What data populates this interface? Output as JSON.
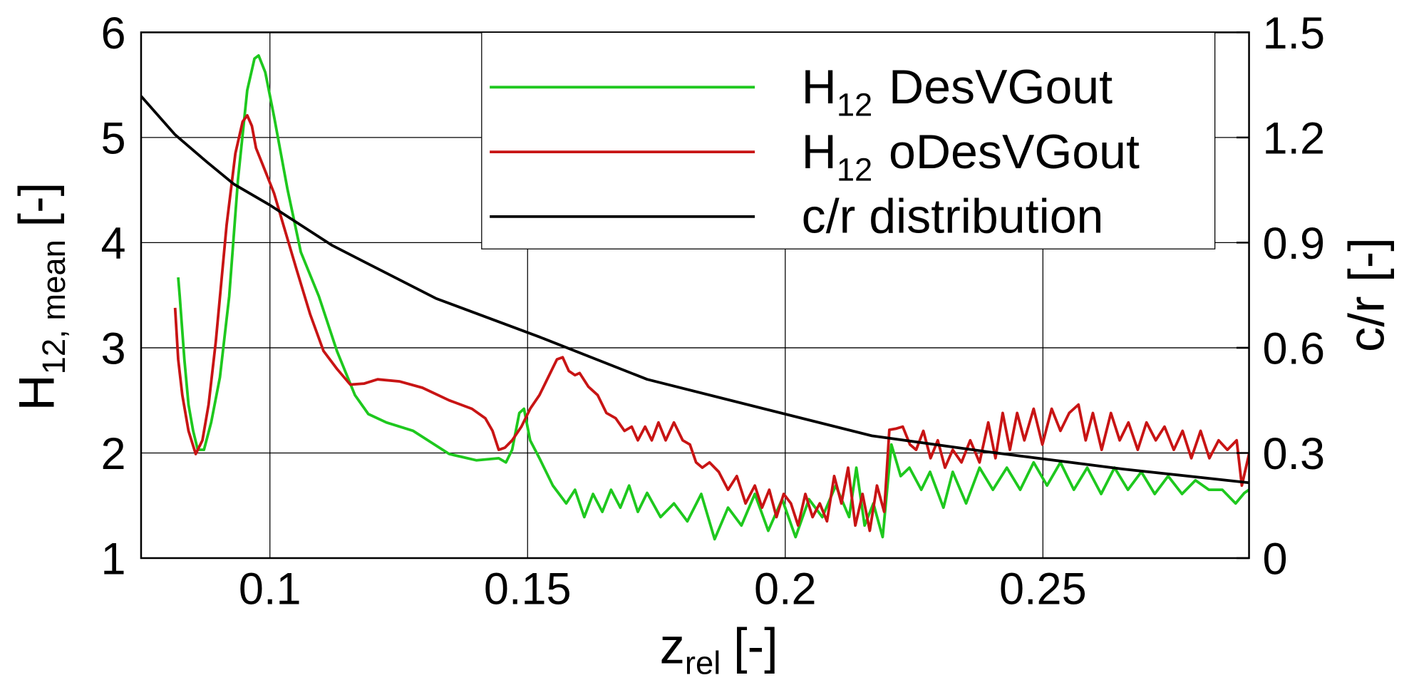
{
  "chart_data": {
    "type": "line",
    "xlabel": {
      "base": "z",
      "sub": "rel",
      "unit": "[-]"
    },
    "ylabel": {
      "base": "H",
      "sub": "12, mean",
      "unit": "[-]"
    },
    "y2label": "c/r [-]",
    "xlim": [
      0.075,
      0.29
    ],
    "xticks": [
      0.1,
      0.15,
      0.2,
      0.25
    ],
    "ylim": [
      1,
      6
    ],
    "yticks": [
      1,
      2,
      3,
      4,
      5,
      6
    ],
    "y2lim": [
      0,
      1.5
    ],
    "y2ticks": [
      0,
      0.3,
      0.6,
      0.9,
      1.2,
      1.5
    ],
    "grid": true,
    "legend": "upper right",
    "series": [
      {
        "name": {
          "base": "H",
          "sub": "12",
          "rest": "DesVGout"
        },
        "color": "#1ec81e",
        "x": [
          0.0822,
          0.0825,
          0.0834,
          0.0842,
          0.0851,
          0.086,
          0.0872,
          0.0886,
          0.0903,
          0.0921,
          0.0938,
          0.0956,
          0.097,
          0.0978,
          0.0991,
          0.1008,
          0.1034,
          0.106,
          0.1095,
          0.113,
          0.1165,
          0.1191,
          0.1226,
          0.1278,
          0.1348,
          0.1401,
          0.1444,
          0.1458,
          0.147,
          0.1484,
          0.1493,
          0.1505,
          0.1523,
          0.1549,
          0.1575,
          0.1592,
          0.161,
          0.1627,
          0.1645,
          0.1662,
          0.168,
          0.1697,
          0.1714,
          0.1732,
          0.1758,
          0.1784,
          0.181,
          0.1837,
          0.1863,
          0.1889,
          0.1915,
          0.1941,
          0.1967,
          0.1994,
          0.202,
          0.2046,
          0.2072,
          0.2098,
          0.2124,
          0.2138,
          0.2154,
          0.2171,
          0.2189,
          0.2206,
          0.2224,
          0.2241,
          0.2264,
          0.2281,
          0.2307,
          0.2325,
          0.2351,
          0.2377,
          0.2403,
          0.243,
          0.2456,
          0.2482,
          0.2508,
          0.2534,
          0.256,
          0.2586,
          0.2613,
          0.2639,
          0.2665,
          0.2691,
          0.2717,
          0.2743,
          0.277,
          0.2796,
          0.2822,
          0.2848,
          0.2874,
          0.2891,
          0.29
        ],
        "values": [
          3.67,
          3.49,
          2.89,
          2.46,
          2.21,
          2.03,
          2.03,
          2.29,
          2.72,
          3.49,
          4.6,
          5.45,
          5.75,
          5.78,
          5.62,
          5.2,
          4.51,
          3.91,
          3.49,
          2.97,
          2.55,
          2.37,
          2.29,
          2.21,
          1.99,
          1.93,
          1.95,
          1.91,
          2.03,
          2.38,
          2.42,
          2.12,
          1.95,
          1.69,
          1.52,
          1.65,
          1.39,
          1.61,
          1.44,
          1.65,
          1.48,
          1.69,
          1.44,
          1.62,
          1.39,
          1.52,
          1.35,
          1.61,
          1.18,
          1.48,
          1.31,
          1.61,
          1.26,
          1.56,
          1.2,
          1.56,
          1.39,
          1.69,
          1.39,
          1.86,
          1.31,
          1.52,
          1.2,
          2.08,
          1.78,
          1.86,
          1.65,
          1.82,
          1.48,
          1.82,
          1.52,
          1.86,
          1.65,
          1.86,
          1.65,
          1.91,
          1.69,
          1.91,
          1.65,
          1.86,
          1.61,
          1.86,
          1.65,
          1.82,
          1.61,
          1.78,
          1.61,
          1.74,
          1.65,
          1.65,
          1.52,
          1.62,
          1.65
        ]
      },
      {
        "name": {
          "base": "H",
          "sub": "12",
          "rest": "oDesVGout"
        },
        "color": "#c81414",
        "x": [
          0.0816,
          0.0822,
          0.083,
          0.0842,
          0.0856,
          0.0869,
          0.0881,
          0.0895,
          0.0916,
          0.0933,
          0.0947,
          0.0956,
          0.0965,
          0.0973,
          0.0991,
          0.1008,
          0.1026,
          0.1052,
          0.1078,
          0.1104,
          0.113,
          0.1156,
          0.1183,
          0.1209,
          0.1252,
          0.1296,
          0.1348,
          0.1392,
          0.1418,
          0.1432,
          0.1444,
          0.1456,
          0.147,
          0.1488,
          0.1505,
          0.1523,
          0.154,
          0.1557,
          0.1568,
          0.158,
          0.1592,
          0.1601,
          0.1618,
          0.1636,
          0.1653,
          0.1671,
          0.1688,
          0.1702,
          0.1714,
          0.1728,
          0.1741,
          0.1754,
          0.1768,
          0.1784,
          0.1801,
          0.1815,
          0.1827,
          0.1839,
          0.1853,
          0.1871,
          0.1889,
          0.1906,
          0.1923,
          0.1941,
          0.1955,
          0.1969,
          0.1983,
          0.1997,
          0.2011,
          0.2025,
          0.2039,
          0.2053,
          0.2067,
          0.2081,
          0.2095,
          0.2109,
          0.2122,
          0.2136,
          0.215,
          0.2164,
          0.2178,
          0.2192,
          0.2202,
          0.2214,
          0.2228,
          0.2242,
          0.2254,
          0.2268,
          0.2282,
          0.2296,
          0.231,
          0.2325,
          0.2342,
          0.2359,
          0.2377,
          0.2394,
          0.2408,
          0.2422,
          0.2436,
          0.245,
          0.2464,
          0.2482,
          0.2499,
          0.2517,
          0.2534,
          0.2551,
          0.2569,
          0.2583,
          0.2597,
          0.2614,
          0.2632,
          0.2649,
          0.2666,
          0.2684,
          0.2701,
          0.2719,
          0.2736,
          0.2754,
          0.2771,
          0.2788,
          0.2806,
          0.2823,
          0.2841,
          0.2858,
          0.2876,
          0.2886,
          0.29
        ],
        "values": [
          3.38,
          2.89,
          2.55,
          2.21,
          1.99,
          2.12,
          2.46,
          3.06,
          4.17,
          4.85,
          5.15,
          5.21,
          5.11,
          4.9,
          4.68,
          4.47,
          4.17,
          3.74,
          3.32,
          2.97,
          2.8,
          2.65,
          2.66,
          2.7,
          2.68,
          2.62,
          2.5,
          2.42,
          2.33,
          2.21,
          2.03,
          2.05,
          2.12,
          2.25,
          2.42,
          2.55,
          2.72,
          2.89,
          2.91,
          2.78,
          2.74,
          2.76,
          2.63,
          2.55,
          2.38,
          2.33,
          2.21,
          2.25,
          2.12,
          2.25,
          2.12,
          2.29,
          2.12,
          2.29,
          2.12,
          2.08,
          1.91,
          1.86,
          1.91,
          1.82,
          1.65,
          1.78,
          1.52,
          1.69,
          1.48,
          1.65,
          1.39,
          1.61,
          1.52,
          1.31,
          1.61,
          1.39,
          1.52,
          1.35,
          1.78,
          1.52,
          1.86,
          1.31,
          1.61,
          1.26,
          1.69,
          1.44,
          2.22,
          2.23,
          2.25,
          2.08,
          2.03,
          2.21,
          1.95,
          2.12,
          1.86,
          2.03,
          1.91,
          2.12,
          1.91,
          2.29,
          1.95,
          2.38,
          2.03,
          2.38,
          2.12,
          2.42,
          2.08,
          2.42,
          2.21,
          2.38,
          2.46,
          2.12,
          2.38,
          2.03,
          2.38,
          2.12,
          2.29,
          2.03,
          2.29,
          2.12,
          2.25,
          2.03,
          2.21,
          1.95,
          2.21,
          1.95,
          2.12,
          2.03,
          2.12,
          1.69,
          1.99
        ]
      },
      {
        "name": "c/r distribution",
        "color": "#000000",
        "axis": "y2",
        "x": [
          0.075,
          0.0816,
          0.0877,
          0.093,
          0.0999,
          0.1121,
          0.1322,
          0.1523,
          0.1732,
          0.1959,
          0.2168,
          0.2394,
          0.2656,
          0.29
        ],
        "values": [
          1.318,
          1.208,
          1.131,
          1.067,
          1.008,
          0.892,
          0.741,
          0.631,
          0.51,
          0.426,
          0.349,
          0.303,
          0.254,
          0.215
        ]
      }
    ]
  }
}
